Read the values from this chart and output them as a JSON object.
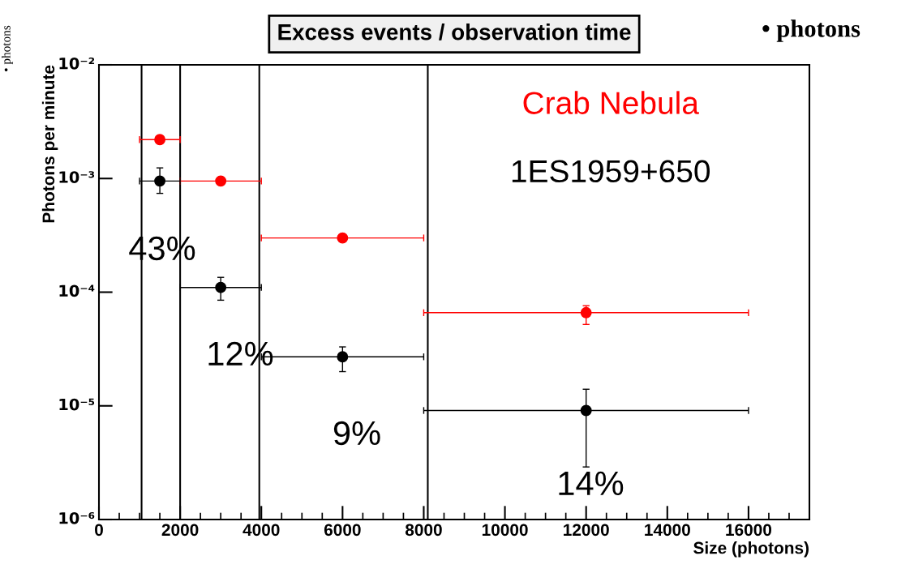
{
  "chart_data": {
    "type": "scatter",
    "title": "Excess events / observation time",
    "xlabel": "Size (photons)",
    "ylabel": "Photons per minute",
    "x": [
      1500,
      3000,
      6000,
      12000
    ],
    "series": [
      {
        "name": "Crab Nebula",
        "color": "#ff0000",
        "values": [
          0.0022,
          0.00095,
          0.0003,
          6.6e-05
        ],
        "errors": [
          null,
          null,
          null,
          [
            5.2e-05,
            7.6e-05
          ]
        ],
        "xerrors": [
          500,
          1000,
          2000,
          4000
        ]
      },
      {
        "name": "1ES1959+650",
        "color": "#000000",
        "values": [
          0.00095,
          0.00011,
          2.7e-05,
          9.1e-06
        ],
        "errors": [
          [
            0.00074,
            0.00124
          ],
          [
            8.5e-05,
            0.000135
          ],
          [
            2e-05,
            3.3e-05
          ],
          [
            2.9e-06,
            1.4e-05
          ]
        ],
        "xerrors": [
          500,
          1000,
          2000,
          4000
        ]
      }
    ],
    "log": "y",
    "xlim": [
      0,
      17500
    ],
    "ylim": [
      1e-06,
      0.01
    ],
    "xticks": [
      0,
      2000,
      4000,
      6000,
      8000,
      10000,
      12000,
      14000,
      16000
    ],
    "yticks": [
      {
        "value": 1e-06,
        "label": "10⁻⁶"
      },
      {
        "value": 1e-05,
        "label": "10⁻⁵"
      },
      {
        "value": 0.0001,
        "label": "10⁻⁴"
      },
      {
        "value": 0.001,
        "label": "10⁻³"
      },
      {
        "value": 0.01,
        "label": "10⁻²"
      }
    ],
    "ref_lines": [
      {
        "axis": "x",
        "value": 1050,
        "color": "#000000"
      },
      {
        "axis": "x",
        "value": 2000,
        "color": "#000000"
      },
      {
        "axis": "x",
        "value": 3950,
        "color": "#000000"
      },
      {
        "axis": "x",
        "value": 8100,
        "color": "#000000"
      }
    ],
    "annotations": [
      "43%",
      "12%",
      "9%",
      "14%",
      "• photons",
      "• photons"
    ],
    "marker": "circle",
    "grid": false
  }
}
